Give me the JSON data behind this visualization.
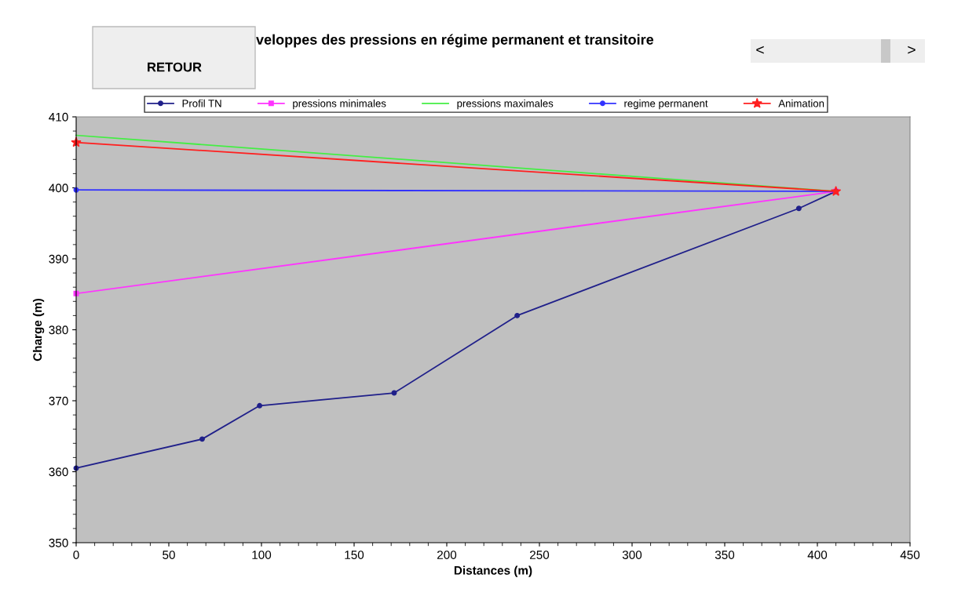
{
  "chart_data": {
    "type": "line",
    "title": "veloppes des pressions en régime permanent et transitoire",
    "xlabel": "Distances (m)",
    "ylabel": "Charge (m)",
    "series": [
      {
        "name": "Profil TN",
        "color": "#20208a",
        "marker": "circle",
        "x": [
          0,
          68,
          99,
          171.6,
          238,
          390,
          410
        ],
        "values": [
          360.5,
          364.6,
          369.3,
          371.1,
          382.0,
          397.1,
          399.5
        ]
      },
      {
        "name": "pressions minimales",
        "color": "#ff33ff",
        "marker": "square",
        "x": [
          0,
          410
        ],
        "values": [
          385.1,
          399.5
        ]
      },
      {
        "name": "pressions maximales",
        "color": "#44ee44",
        "marker": "none",
        "x": [
          0,
          410
        ],
        "values": [
          407.4,
          399.5
        ]
      },
      {
        "name": "regime permanent",
        "color": "#3333ff",
        "marker": "circle",
        "x": [
          0,
          410
        ],
        "values": [
          399.7,
          399.5
        ]
      },
      {
        "name": "Animation",
        "color": "#ff2020",
        "marker": "star",
        "x": [
          0,
          410
        ],
        "values": [
          406.4,
          399.5
        ]
      }
    ],
    "xlim": [
      0,
      450
    ],
    "xticks": [
      0,
      50,
      100,
      150,
      200,
      250,
      300,
      350,
      400,
      450
    ],
    "ylim": [
      350,
      410
    ],
    "yticks": [
      350,
      360,
      370,
      380,
      390,
      400,
      410
    ],
    "grid": false,
    "legend": "top",
    "line_style": "solid",
    "annotations": [
      "RETOUR",
      "<",
      ">"
    ]
  }
}
